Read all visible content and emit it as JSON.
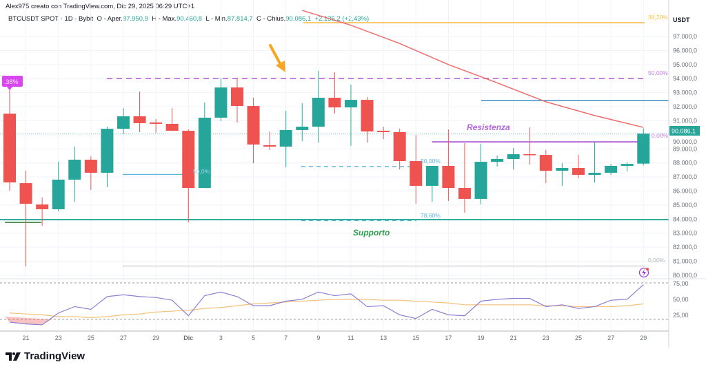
{
  "header": {
    "credit": "Alex975 creato con TradingView.com, Dic 29, 2025 06:29 UTC+1",
    "symbol": "BTCUSDT SPOT · 1D · Bybit",
    "open_label": "O - Aper.",
    "open": "87.950,9",
    "high_label": "H - Max.",
    "high": "90.460,8",
    "low_label": "L - Min.",
    "low": "87.814,7",
    "close_label": "C - Chius.",
    "close": "90.086,1",
    "change": "+2.135,2 (+2,43%)"
  },
  "price_axis": {
    "currency": "USDT",
    "ticks": [
      "97.000,0",
      "96.000,0",
      "95.000,0",
      "94.000,0",
      "93.000,0",
      "92.000,0",
      "91.000,0",
      "90.000,0",
      "89.000,0",
      "88.000,0",
      "87.000,0",
      "86.000,0",
      "85.000,0",
      "84.000,0",
      "83.000,0",
      "82.000,0",
      "81.000,0",
      "80.000,0"
    ],
    "last_price": "90.086,1"
  },
  "rsi_axis": {
    "ticks": [
      "75,00",
      "50,00",
      "25,00"
    ]
  },
  "time_axis": {
    "ticks": [
      "21",
      "23",
      "25",
      "27",
      "29",
      "Dic",
      "3",
      "5",
      "7",
      "9",
      "11",
      "13",
      "15",
      "17",
      "19",
      "21",
      "23",
      "25",
      "27",
      "29"
    ]
  },
  "annotations": {
    "resistance": "Resistenza",
    "support": "Supporto",
    "fib_38": "38,20%",
    "fib_50_top": "50,00%",
    "fib_right_partial": "0,00%",
    "fib_50_mid": "50,00%",
    "fib_78": "78,60%",
    "fib_0": "0,00%",
    "fib_left": "50,0%",
    "badge": ".38%"
  },
  "colors": {
    "up": "#26a69a",
    "down": "#ef5350",
    "ma": "#f06b6b",
    "rsi": "#8a7fd4",
    "rsi_ma": "#f5c17a",
    "resistance": "#b366d9",
    "support": "#2e9e4f",
    "fib_orange": "#f5b942",
    "accent_blue": "#2a84c8"
  },
  "icons": [
    "arrow-down-annotation-icon",
    "lightning-alert-icon",
    "tradingview-logo-icon"
  ],
  "brand": "TradingView",
  "chart_data": {
    "type": "candlestick",
    "title": "BTCUSDT SPOT · 1D · Bybit",
    "ylim": [
      79500,
      98500
    ],
    "candles": [
      {
        "date": "Nov 20",
        "o": 91510,
        "h": 93230,
        "l": 86020,
        "c": 86610
      },
      {
        "date": "Nov 21",
        "o": 86560,
        "h": 87450,
        "l": 80630,
        "c": 85090
      },
      {
        "date": "Nov 22",
        "o": 85040,
        "h": 85530,
        "l": 83530,
        "c": 84700
      },
      {
        "date": "Nov 23",
        "o": 84700,
        "h": 88080,
        "l": 84550,
        "c": 86810
      },
      {
        "date": "Nov 24",
        "o": 86810,
        "h": 89160,
        "l": 85240,
        "c": 88230
      },
      {
        "date": "Nov 25",
        "o": 88230,
        "h": 88470,
        "l": 86070,
        "c": 87300
      },
      {
        "date": "Nov 26",
        "o": 87300,
        "h": 90580,
        "l": 86270,
        "c": 90430
      },
      {
        "date": "Nov 27",
        "o": 90430,
        "h": 91900,
        "l": 90040,
        "c": 91320
      },
      {
        "date": "Nov 28",
        "o": 91320,
        "h": 93080,
        "l": 90190,
        "c": 90830
      },
      {
        "date": "Nov 29",
        "o": 90880,
        "h": 91120,
        "l": 90140,
        "c": 90780
      },
      {
        "date": "Nov 30",
        "o": 90780,
        "h": 91900,
        "l": 90290,
        "c": 90290
      },
      {
        "date": "Dec 1",
        "o": 90290,
        "h": 90390,
        "l": 83770,
        "c": 86220
      },
      {
        "date": "Dec 2",
        "o": 86220,
        "h": 92300,
        "l": 86220,
        "c": 91220
      },
      {
        "date": "Dec 3",
        "o": 91220,
        "h": 94060,
        "l": 90970,
        "c": 93370
      },
      {
        "date": "Dec 4",
        "o": 93370,
        "h": 94010,
        "l": 90880,
        "c": 92050
      },
      {
        "date": "Dec 5",
        "o": 92050,
        "h": 92640,
        "l": 87980,
        "c": 89310
      },
      {
        "date": "Dec 6",
        "o": 89260,
        "h": 90240,
        "l": 88920,
        "c": 89160
      },
      {
        "date": "Dec 7",
        "o": 89160,
        "h": 91710,
        "l": 87700,
        "c": 90340
      },
      {
        "date": "Dec 8",
        "o": 90340,
        "h": 92250,
        "l": 89550,
        "c": 90580
      },
      {
        "date": "Dec 9",
        "o": 90580,
        "h": 94550,
        "l": 89450,
        "c": 92640
      },
      {
        "date": "Dec 10",
        "o": 92640,
        "h": 94450,
        "l": 91510,
        "c": 91950
      },
      {
        "date": "Dec 11",
        "o": 91950,
        "h": 93570,
        "l": 89210,
        "c": 92490
      },
      {
        "date": "Dec 12",
        "o": 92490,
        "h": 92690,
        "l": 89450,
        "c": 90240
      },
      {
        "date": "Dec 13",
        "o": 90290,
        "h": 90580,
        "l": 89700,
        "c": 90190
      },
      {
        "date": "Dec 14",
        "o": 90190,
        "h": 90430,
        "l": 87540,
        "c": 88130
      },
      {
        "date": "Dec 15",
        "o": 88130,
        "h": 89990,
        "l": 85100,
        "c": 86370
      },
      {
        "date": "Dec 16",
        "o": 86370,
        "h": 87790,
        "l": 85240,
        "c": 87790
      },
      {
        "date": "Dec 17",
        "o": 87790,
        "h": 90380,
        "l": 85290,
        "c": 86220
      },
      {
        "date": "Dec 18",
        "o": 86220,
        "h": 89400,
        "l": 84460,
        "c": 85440
      },
      {
        "date": "Dec 19",
        "o": 85440,
        "h": 89350,
        "l": 85050,
        "c": 88080
      },
      {
        "date": "Dec 20",
        "o": 88080,
        "h": 88520,
        "l": 87740,
        "c": 88280
      },
      {
        "date": "Dec 21",
        "o": 88280,
        "h": 89060,
        "l": 87540,
        "c": 88620
      },
      {
        "date": "Dec 22",
        "o": 88620,
        "h": 90530,
        "l": 87880,
        "c": 88570
      },
      {
        "date": "Dec 23",
        "o": 88570,
        "h": 88920,
        "l": 86560,
        "c": 87440
      },
      {
        "date": "Dec 24",
        "o": 87440,
        "h": 87980,
        "l": 86370,
        "c": 87640
      },
      {
        "date": "Dec 25",
        "o": 87640,
        "h": 88570,
        "l": 86910,
        "c": 87150
      },
      {
        "date": "Dec 26",
        "o": 87150,
        "h": 89450,
        "l": 86610,
        "c": 87300
      },
      {
        "date": "Dec 27",
        "o": 87300,
        "h": 87930,
        "l": 87150,
        "c": 87790
      },
      {
        "date": "Dec 28",
        "o": 87790,
        "h": 88030,
        "l": 87400,
        "c": 87930
      },
      {
        "date": "Dec 29",
        "o": 87951,
        "h": 90461,
        "l": 87815,
        "c": 90086
      }
    ],
    "moving_average": [
      {
        "date": "Dec 8",
        "v": 98860
      },
      {
        "date": "Dec 11",
        "v": 97800
      },
      {
        "date": "Dec 14",
        "v": 96500
      },
      {
        "date": "Dec 17",
        "v": 95000
      },
      {
        "date": "Dec 20",
        "v": 93700
      },
      {
        "date": "Dec 23",
        "v": 92350
      },
      {
        "date": "Dec 26",
        "v": 91370
      },
      {
        "date": "Dec 29",
        "v": 90530
      }
    ],
    "levels": {
      "fib_38": 97980,
      "fib_50_dashed": 94010,
      "blue_line": 92440,
      "resistance": 89500,
      "fib_50_mid": 87740,
      "support": 83960,
      "fib_78": 83900,
      "fib_0": 80660,
      "left_line": 87180
    },
    "rsi": {
      "ylim": [
        10,
        90
      ],
      "bands": [
        70,
        30
      ],
      "values": [
        27,
        25,
        24,
        37,
        44,
        41,
        55,
        57,
        55,
        54,
        51,
        34,
        56,
        60,
        55,
        45,
        45,
        50,
        52,
        60,
        56,
        58,
        44,
        45,
        35,
        31,
        41,
        35,
        34,
        50,
        52,
        53,
        53,
        44,
        46,
        42,
        44,
        51,
        52,
        68
      ],
      "ma": [
        37,
        36,
        35,
        33,
        33,
        32,
        33,
        35,
        36,
        38,
        39,
        40,
        42,
        43,
        45,
        47,
        48,
        49,
        50,
        51,
        52,
        52,
        52,
        51,
        51,
        50,
        49,
        48,
        46,
        46,
        46,
        46,
        46,
        45,
        45,
        44,
        44,
        44,
        45,
        47
      ]
    }
  }
}
